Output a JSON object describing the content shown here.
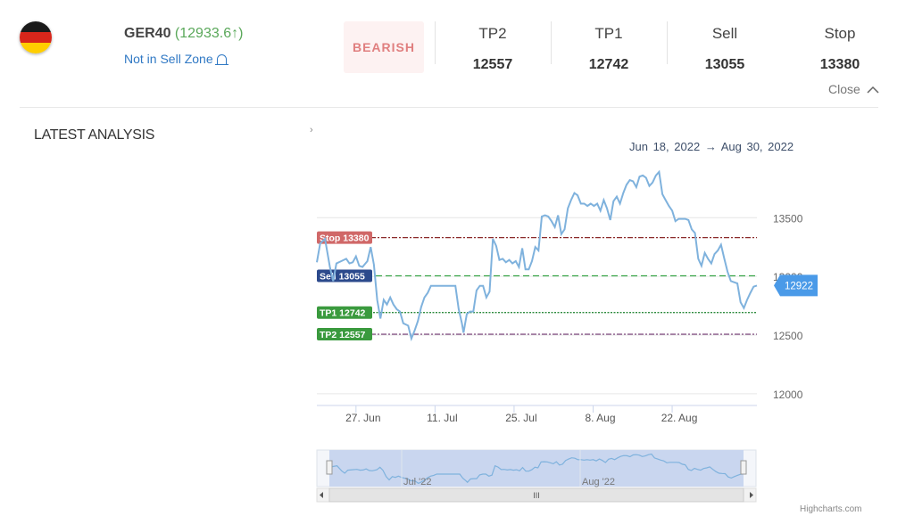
{
  "header": {
    "flag_icon": "germany-flag-icon",
    "symbol": "GER40",
    "price": "(12933.6↑)",
    "zone_status": "Not in Sell Zone",
    "signal_badge": "BEARISH",
    "levels": [
      {
        "label": "TP2",
        "value": "12557"
      },
      {
        "label": "TP1",
        "value": "12742"
      },
      {
        "label": "Sell",
        "value": "13055"
      },
      {
        "label": "Stop",
        "value": "13380"
      }
    ],
    "close_label": "Close"
  },
  "section": {
    "title": "LATEST ANALYSIS",
    "expand_icon": "chevron-right-icon"
  },
  "chart_data": {
    "type": "line",
    "date_range_from": "Jun 18, 2022",
    "date_range_to": "Aug 30, 2022",
    "date_range_arrow": "→",
    "x_tick_labels": [
      "27. Jun",
      "11. Jul",
      "25. Jul",
      "8. Aug",
      "22. Aug"
    ],
    "y_tick_labels": [
      "13500",
      "13000",
      "12500",
      "12000"
    ],
    "ylim": [
      11900,
      13950
    ],
    "current_value_label": "12922",
    "plot_bands": [
      {
        "label": "Stop 13380",
        "value": 13330,
        "color": "#8b2a2a",
        "label_color": "#d06868"
      },
      {
        "label": "Sell 13055",
        "value": 13005,
        "color": "#3aa64a",
        "label_color": "#2c4a8c"
      },
      {
        "label": "TP1 12742",
        "value": 12692,
        "color": "#2e8b3e",
        "label_color": "#3a9a3e"
      },
      {
        "label": "TP2 12557",
        "value": 12507,
        "color": "#8a5a8a",
        "label_color": "#3a9a3e"
      }
    ],
    "series": [
      {
        "values": [
          [
            0,
            13120
          ],
          [
            4,
            13280
          ],
          [
            10,
            13320
          ],
          [
            16,
            13080
          ],
          [
            20,
            12960
          ],
          [
            24,
            13110
          ],
          [
            30,
            13130
          ],
          [
            36,
            13150
          ],
          [
            40,
            13110
          ],
          [
            44,
            13120
          ],
          [
            48,
            13170
          ],
          [
            52,
            13090
          ],
          [
            56,
            13080
          ],
          [
            62,
            13130
          ],
          [
            66,
            13250
          ],
          [
            70,
            13100
          ],
          [
            74,
            12800
          ],
          [
            78,
            12640
          ],
          [
            82,
            12800
          ],
          [
            86,
            12760
          ],
          [
            90,
            12820
          ],
          [
            94,
            12760
          ],
          [
            98,
            12720
          ],
          [
            102,
            12700
          ],
          [
            106,
            12600
          ],
          [
            112,
            12580
          ],
          [
            116,
            12470
          ],
          [
            120,
            12540
          ],
          [
            124,
            12620
          ],
          [
            128,
            12740
          ],
          [
            132,
            12820
          ],
          [
            136,
            12860
          ],
          [
            140,
            12920
          ],
          [
            150,
            12920
          ],
          [
            160,
            12920
          ],
          [
            166,
            12920
          ],
          [
            170,
            12920
          ],
          [
            174,
            12720
          ],
          [
            178,
            12600
          ],
          [
            180,
            12520
          ],
          [
            184,
            12680
          ],
          [
            188,
            12700
          ],
          [
            192,
            12700
          ],
          [
            196,
            12880
          ],
          [
            200,
            12920
          ],
          [
            204,
            12920
          ],
          [
            208,
            12820
          ],
          [
            212,
            12870
          ],
          [
            216,
            13320
          ],
          [
            220,
            13260
          ],
          [
            224,
            13140
          ],
          [
            228,
            13150
          ],
          [
            232,
            13120
          ],
          [
            236,
            13140
          ],
          [
            240,
            13110
          ],
          [
            244,
            13130
          ],
          [
            248,
            13080
          ],
          [
            252,
            13240
          ],
          [
            256,
            13060
          ],
          [
            260,
            13060
          ],
          [
            264,
            13130
          ],
          [
            268,
            13250
          ],
          [
            272,
            13220
          ],
          [
            276,
            13510
          ],
          [
            280,
            13520
          ],
          [
            284,
            13510
          ],
          [
            288,
            13470
          ],
          [
            292,
            13420
          ],
          [
            296,
            13520
          ],
          [
            300,
            13360
          ],
          [
            304,
            13400
          ],
          [
            308,
            13580
          ],
          [
            312,
            13650
          ],
          [
            316,
            13710
          ],
          [
            320,
            13690
          ],
          [
            324,
            13620
          ],
          [
            328,
            13620
          ],
          [
            332,
            13600
          ],
          [
            336,
            13620
          ],
          [
            340,
            13600
          ],
          [
            344,
            13620
          ],
          [
            348,
            13560
          ],
          [
            352,
            13650
          ],
          [
            356,
            13580
          ],
          [
            360,
            13480
          ],
          [
            364,
            13640
          ],
          [
            368,
            13680
          ],
          [
            372,
            13620
          ],
          [
            376,
            13710
          ],
          [
            380,
            13780
          ],
          [
            384,
            13820
          ],
          [
            388,
            13810
          ],
          [
            392,
            13760
          ],
          [
            396,
            13850
          ],
          [
            400,
            13860
          ],
          [
            404,
            13840
          ],
          [
            408,
            13770
          ],
          [
            412,
            13800
          ],
          [
            416,
            13860
          ],
          [
            420,
            13890
          ],
          [
            424,
            13700
          ],
          [
            428,
            13650
          ],
          [
            432,
            13600
          ],
          [
            436,
            13560
          ],
          [
            440,
            13470
          ],
          [
            444,
            13490
          ],
          [
            448,
            13490
          ],
          [
            452,
            13490
          ],
          [
            456,
            13480
          ],
          [
            460,
            13400
          ],
          [
            464,
            13370
          ],
          [
            468,
            13150
          ],
          [
            472,
            13090
          ],
          [
            476,
            13200
          ],
          [
            480,
            13150
          ],
          [
            484,
            13110
          ],
          [
            488,
            13190
          ],
          [
            492,
            13220
          ],
          [
            496,
            13270
          ],
          [
            500,
            13150
          ],
          [
            504,
            13040
          ],
          [
            508,
            12960
          ],
          [
            512,
            12950
          ],
          [
            516,
            12940
          ],
          [
            520,
            12780
          ],
          [
            524,
            12730
          ],
          [
            528,
            12800
          ],
          [
            532,
            12860
          ],
          [
            536,
            12912
          ],
          [
            540,
            12922
          ]
        ]
      }
    ]
  },
  "navigator": {
    "labels": [
      "Jul '22",
      "Aug '22"
    ],
    "scroll_grip": "III"
  },
  "credit": "Highcharts.com"
}
